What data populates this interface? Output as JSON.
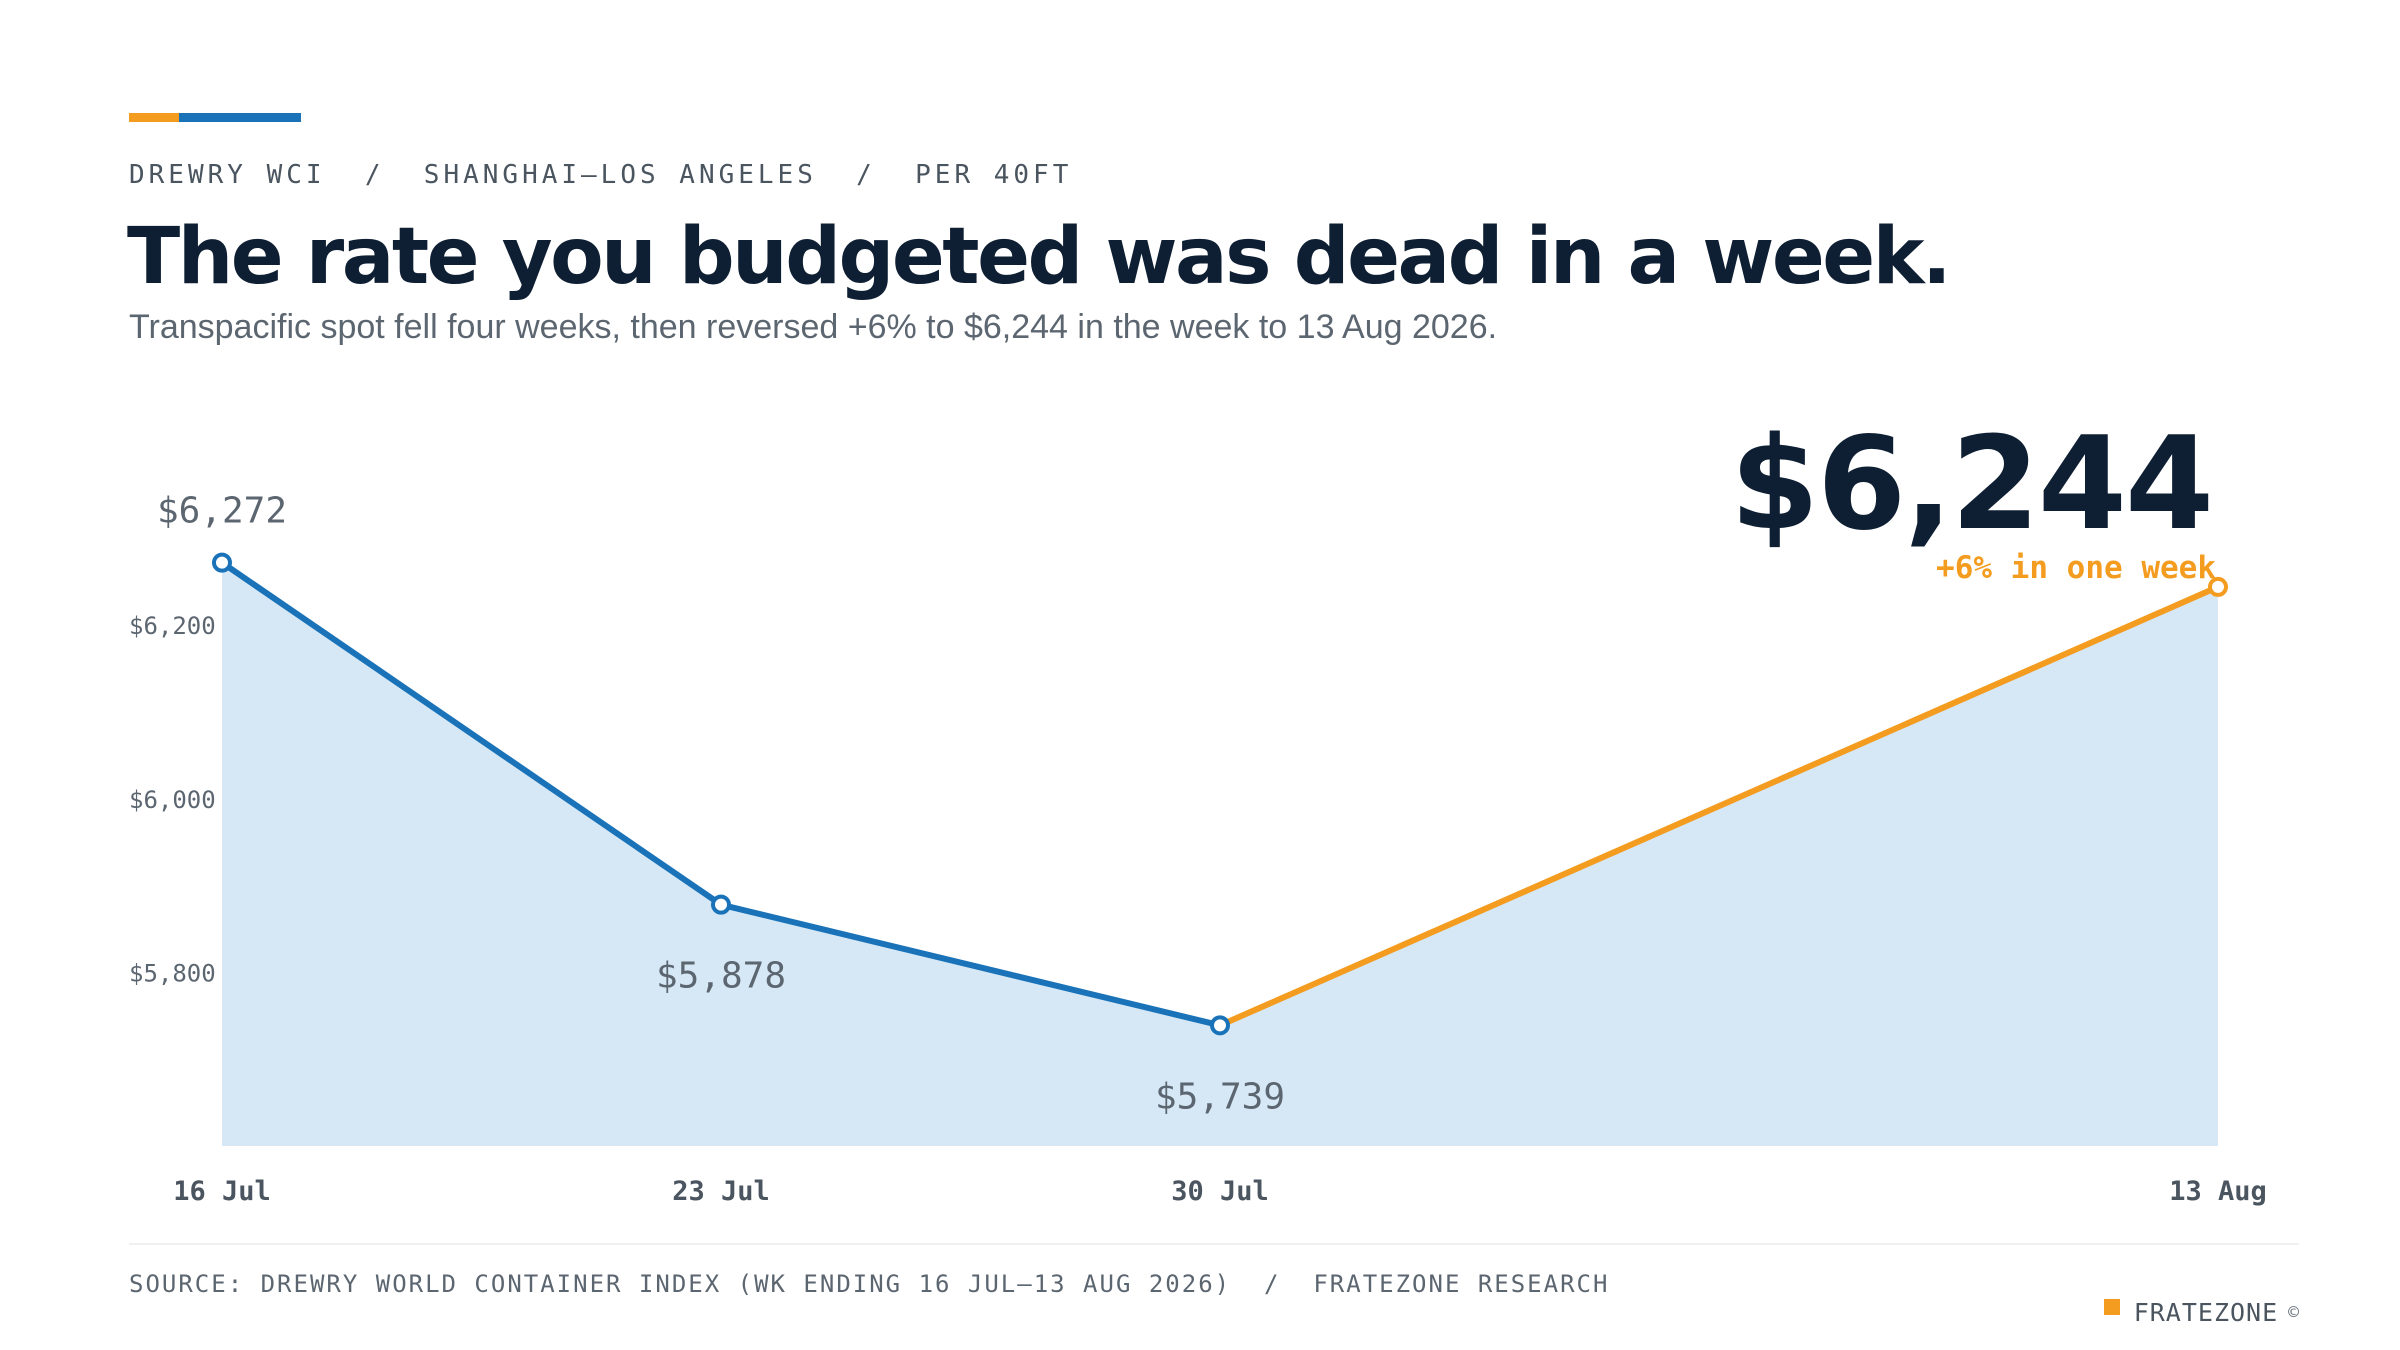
{
  "header": {
    "kicker": "DREWRY WCI  /  SHANGHAI–LOS ANGELES  /  PER 40FT",
    "title": "The rate you budgeted was dead in a week.",
    "subtitle": "Transpacific spot fell four weeks, then reversed +6% to $6,244 in the week to 13 Aug 2026."
  },
  "callout": {
    "value": "$6,244",
    "change": "+6% in one week"
  },
  "colors": {
    "decline": "#1a73b8",
    "rise": "#f39c1f",
    "area": "#d6e8f6",
    "ink": "#0f1f33",
    "muted": "#5c6670"
  },
  "chart_data": {
    "type": "line",
    "x": [
      "2026-07-16",
      "2026-07-23",
      "2026-07-30",
      "2026-08-13"
    ],
    "tick_labels": [
      "16 Jul",
      "23 Jul",
      "30 Jul",
      "13 Aug"
    ],
    "values": [
      6272,
      5878,
      5739,
      6244
    ],
    "data_labels": [
      "$6,272",
      "$5,878",
      "$5,739",
      ""
    ],
    "y_ticks": [
      5800,
      6000,
      6200
    ],
    "y_tick_labels": [
      "$5,800",
      "$6,000",
      "$6,200"
    ],
    "ylim": [
      5600,
      6400
    ],
    "grid": false,
    "legend": "none"
  },
  "footer": {
    "source": "SOURCE: DREWRY WORLD CONTAINER INDEX (WK ENDING 16 JUL–13 AUG 2026)  /  FRATEZONE RESEARCH",
    "brand": "FRATEZONE",
    "copyright": "©"
  }
}
